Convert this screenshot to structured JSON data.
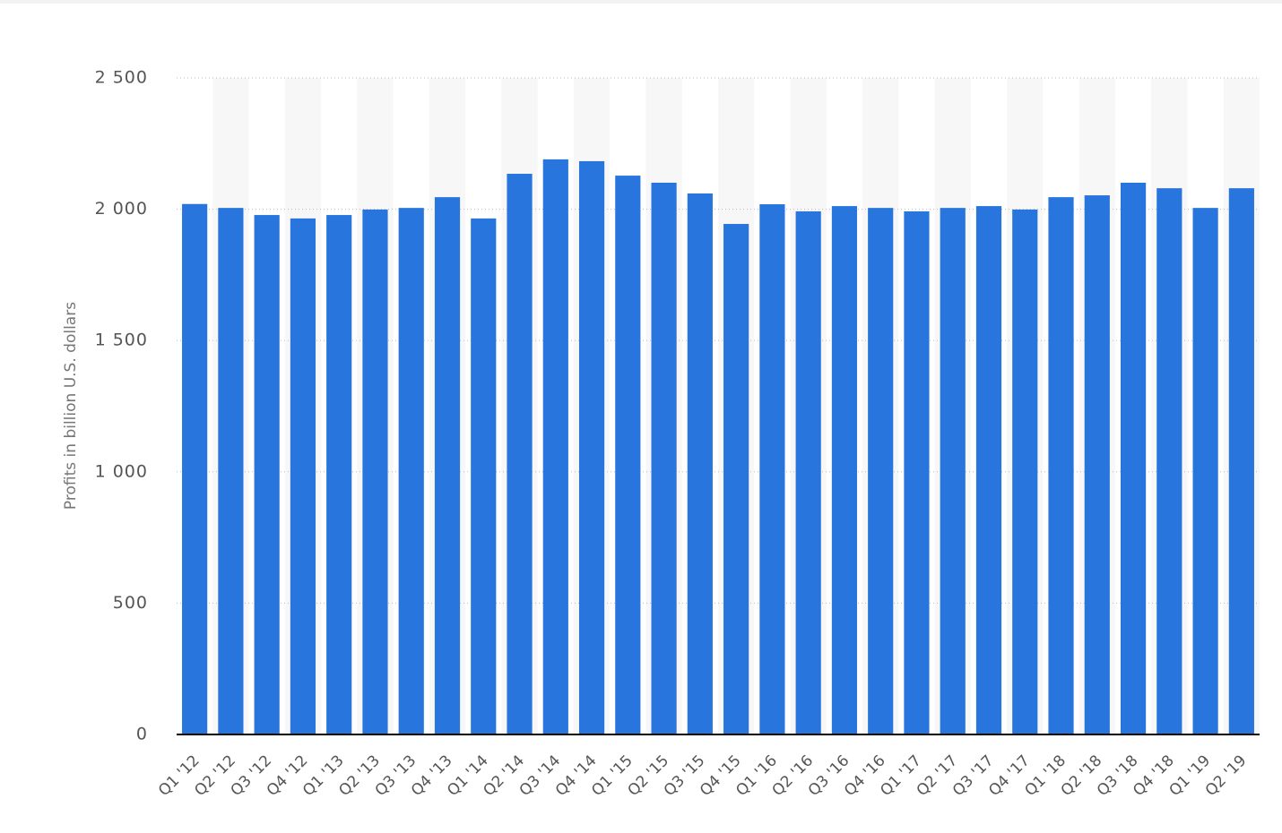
{
  "chart_data": {
    "type": "bar",
    "y_label": "Profits in billion U.S. dollars",
    "categories": [
      "Q1 '12",
      "Q2 '12",
      "Q3 '12",
      "Q4 '12",
      "Q1 '13",
      "Q2 '13",
      "Q3 '13",
      "Q4 '13",
      "Q1 '14",
      "Q2 '14",
      "Q3 '14",
      "Q4 '14",
      "Q1 '15",
      "Q2 '15",
      "Q3 '15",
      "Q4 '15",
      "Q1 '16",
      "Q2 '16",
      "Q3 '16",
      "Q4 '16",
      "Q1 '17",
      "Q2 '17",
      "Q3 '17",
      "Q4 '17",
      "Q1 '18",
      "Q2 '18",
      "Q3 '18",
      "Q4 '18",
      "Q1 '19",
      "Q2 '19"
    ],
    "values": [
      2020,
      2005,
      1978,
      1965,
      1978,
      1999,
      2005,
      2046,
      1965,
      2135,
      2190,
      2183,
      2128,
      2101,
      2060,
      1944,
      2019,
      1992,
      2012,
      2005,
      1992,
      2005,
      2012,
      1999,
      2046,
      2053,
      2101,
      2080,
      2005,
      2080
    ],
    "color": "#2876dd",
    "ylim": [
      0,
      2500
    ],
    "yticks": [
      0,
      500,
      {
        "value": 1000,
        "label": "1 000"
      },
      {
        "value": 1500,
        "label": "1 500"
      },
      {
        "value": 2000,
        "label": "2 000"
      },
      {
        "value": 2500,
        "label": "2 500"
      }
    ],
    "grid": true
  }
}
